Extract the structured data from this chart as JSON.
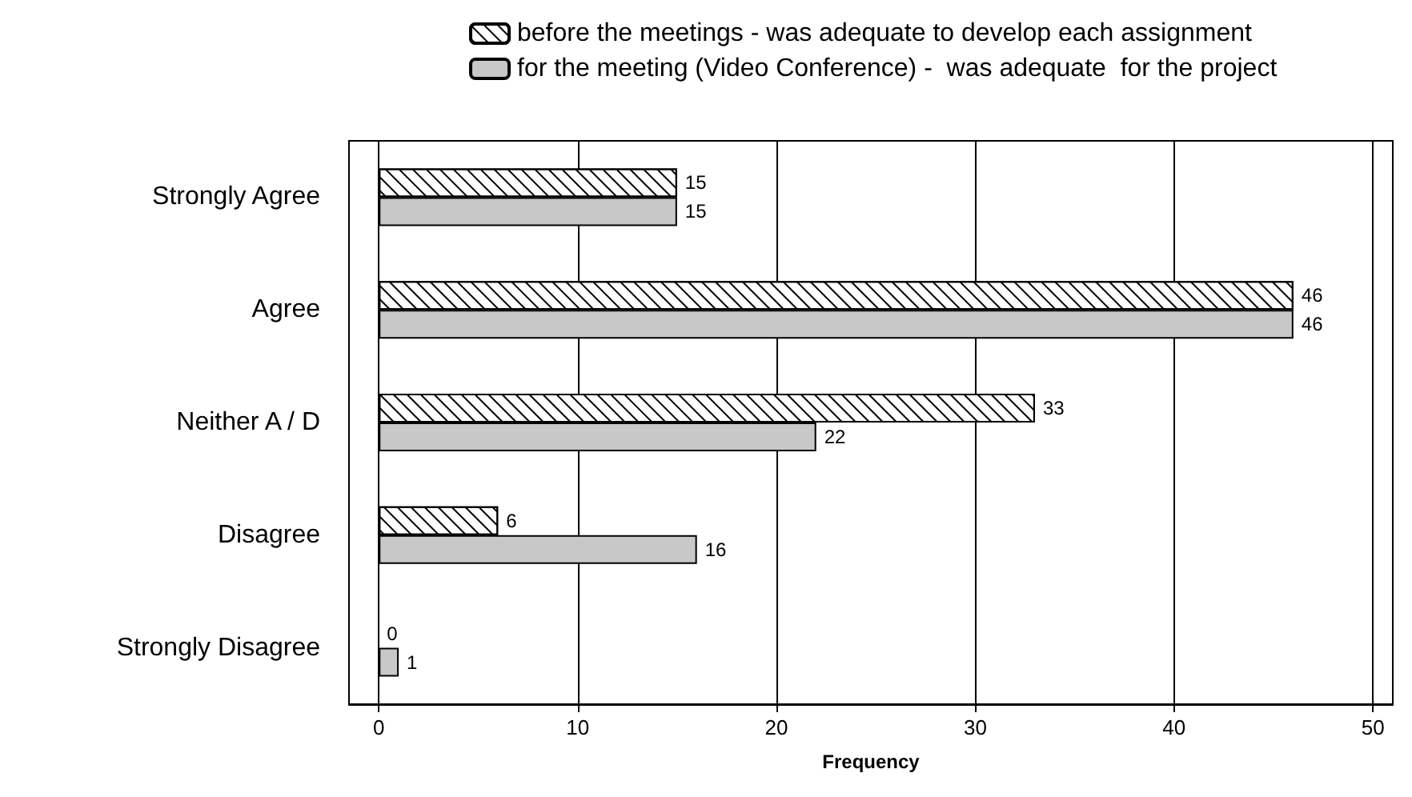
{
  "chart_data": {
    "type": "bar",
    "orientation": "horizontal",
    "categories": [
      "Strongly Agree",
      "Agree",
      "Neither A / D",
      "Disagree",
      "Strongly Disagree"
    ],
    "series": [
      {
        "name": "before the meetings - was adequate to develop each assignment",
        "color": "#ffffff",
        "values": [
          15,
          46,
          33,
          6,
          0
        ]
      },
      {
        "name": "for the meeting (Video Conference) -  was adequate  for the project",
        "color": "#c8c8c8",
        "values": [
          15,
          46,
          22,
          16,
          1
        ]
      }
    ],
    "xlabel": "Frequency",
    "xlim": [
      -1.5,
      51
    ],
    "xticks": [
      0,
      10,
      20,
      30,
      40,
      50
    ],
    "grid": "x",
    "legend": "top",
    "data_labels": true
  }
}
